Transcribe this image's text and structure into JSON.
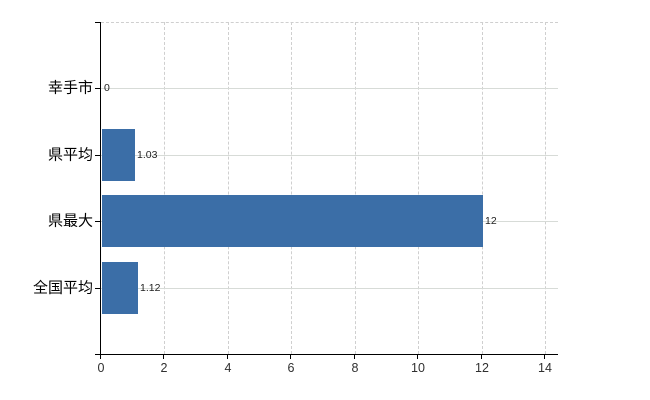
{
  "chart_data": {
    "type": "bar",
    "orientation": "horizontal",
    "title": "",
    "categories": [
      "幸手市",
      "県平均",
      "県最大",
      "全国平均"
    ],
    "values": [
      0,
      1.03,
      12,
      1.12
    ],
    "value_labels": [
      "0",
      "1.03",
      "12",
      "1.12"
    ],
    "x_axis": {
      "ticks": [
        0,
        2,
        4,
        6,
        8,
        10,
        12,
        14
      ],
      "tick_labels": [
        "0",
        "2",
        "4",
        "6",
        "8",
        "10",
        "12",
        "14"
      ],
      "min": 0,
      "max": 14.4
    },
    "grid": {
      "vertical": "dashed",
      "horizontal_at_category_centers": "solid",
      "top_border": "dashed",
      "right_border": "none"
    },
    "legend": null,
    "colors": {
      "bar": "#3b6ea7",
      "grid_dashed": "#cfcfcf",
      "grid_solid": "#d7dbd7",
      "axis": "#000000",
      "category_text": "#000000",
      "value_text": "#1f1f1f",
      "tick_text": "#303030",
      "background": "#ffffff"
    }
  }
}
